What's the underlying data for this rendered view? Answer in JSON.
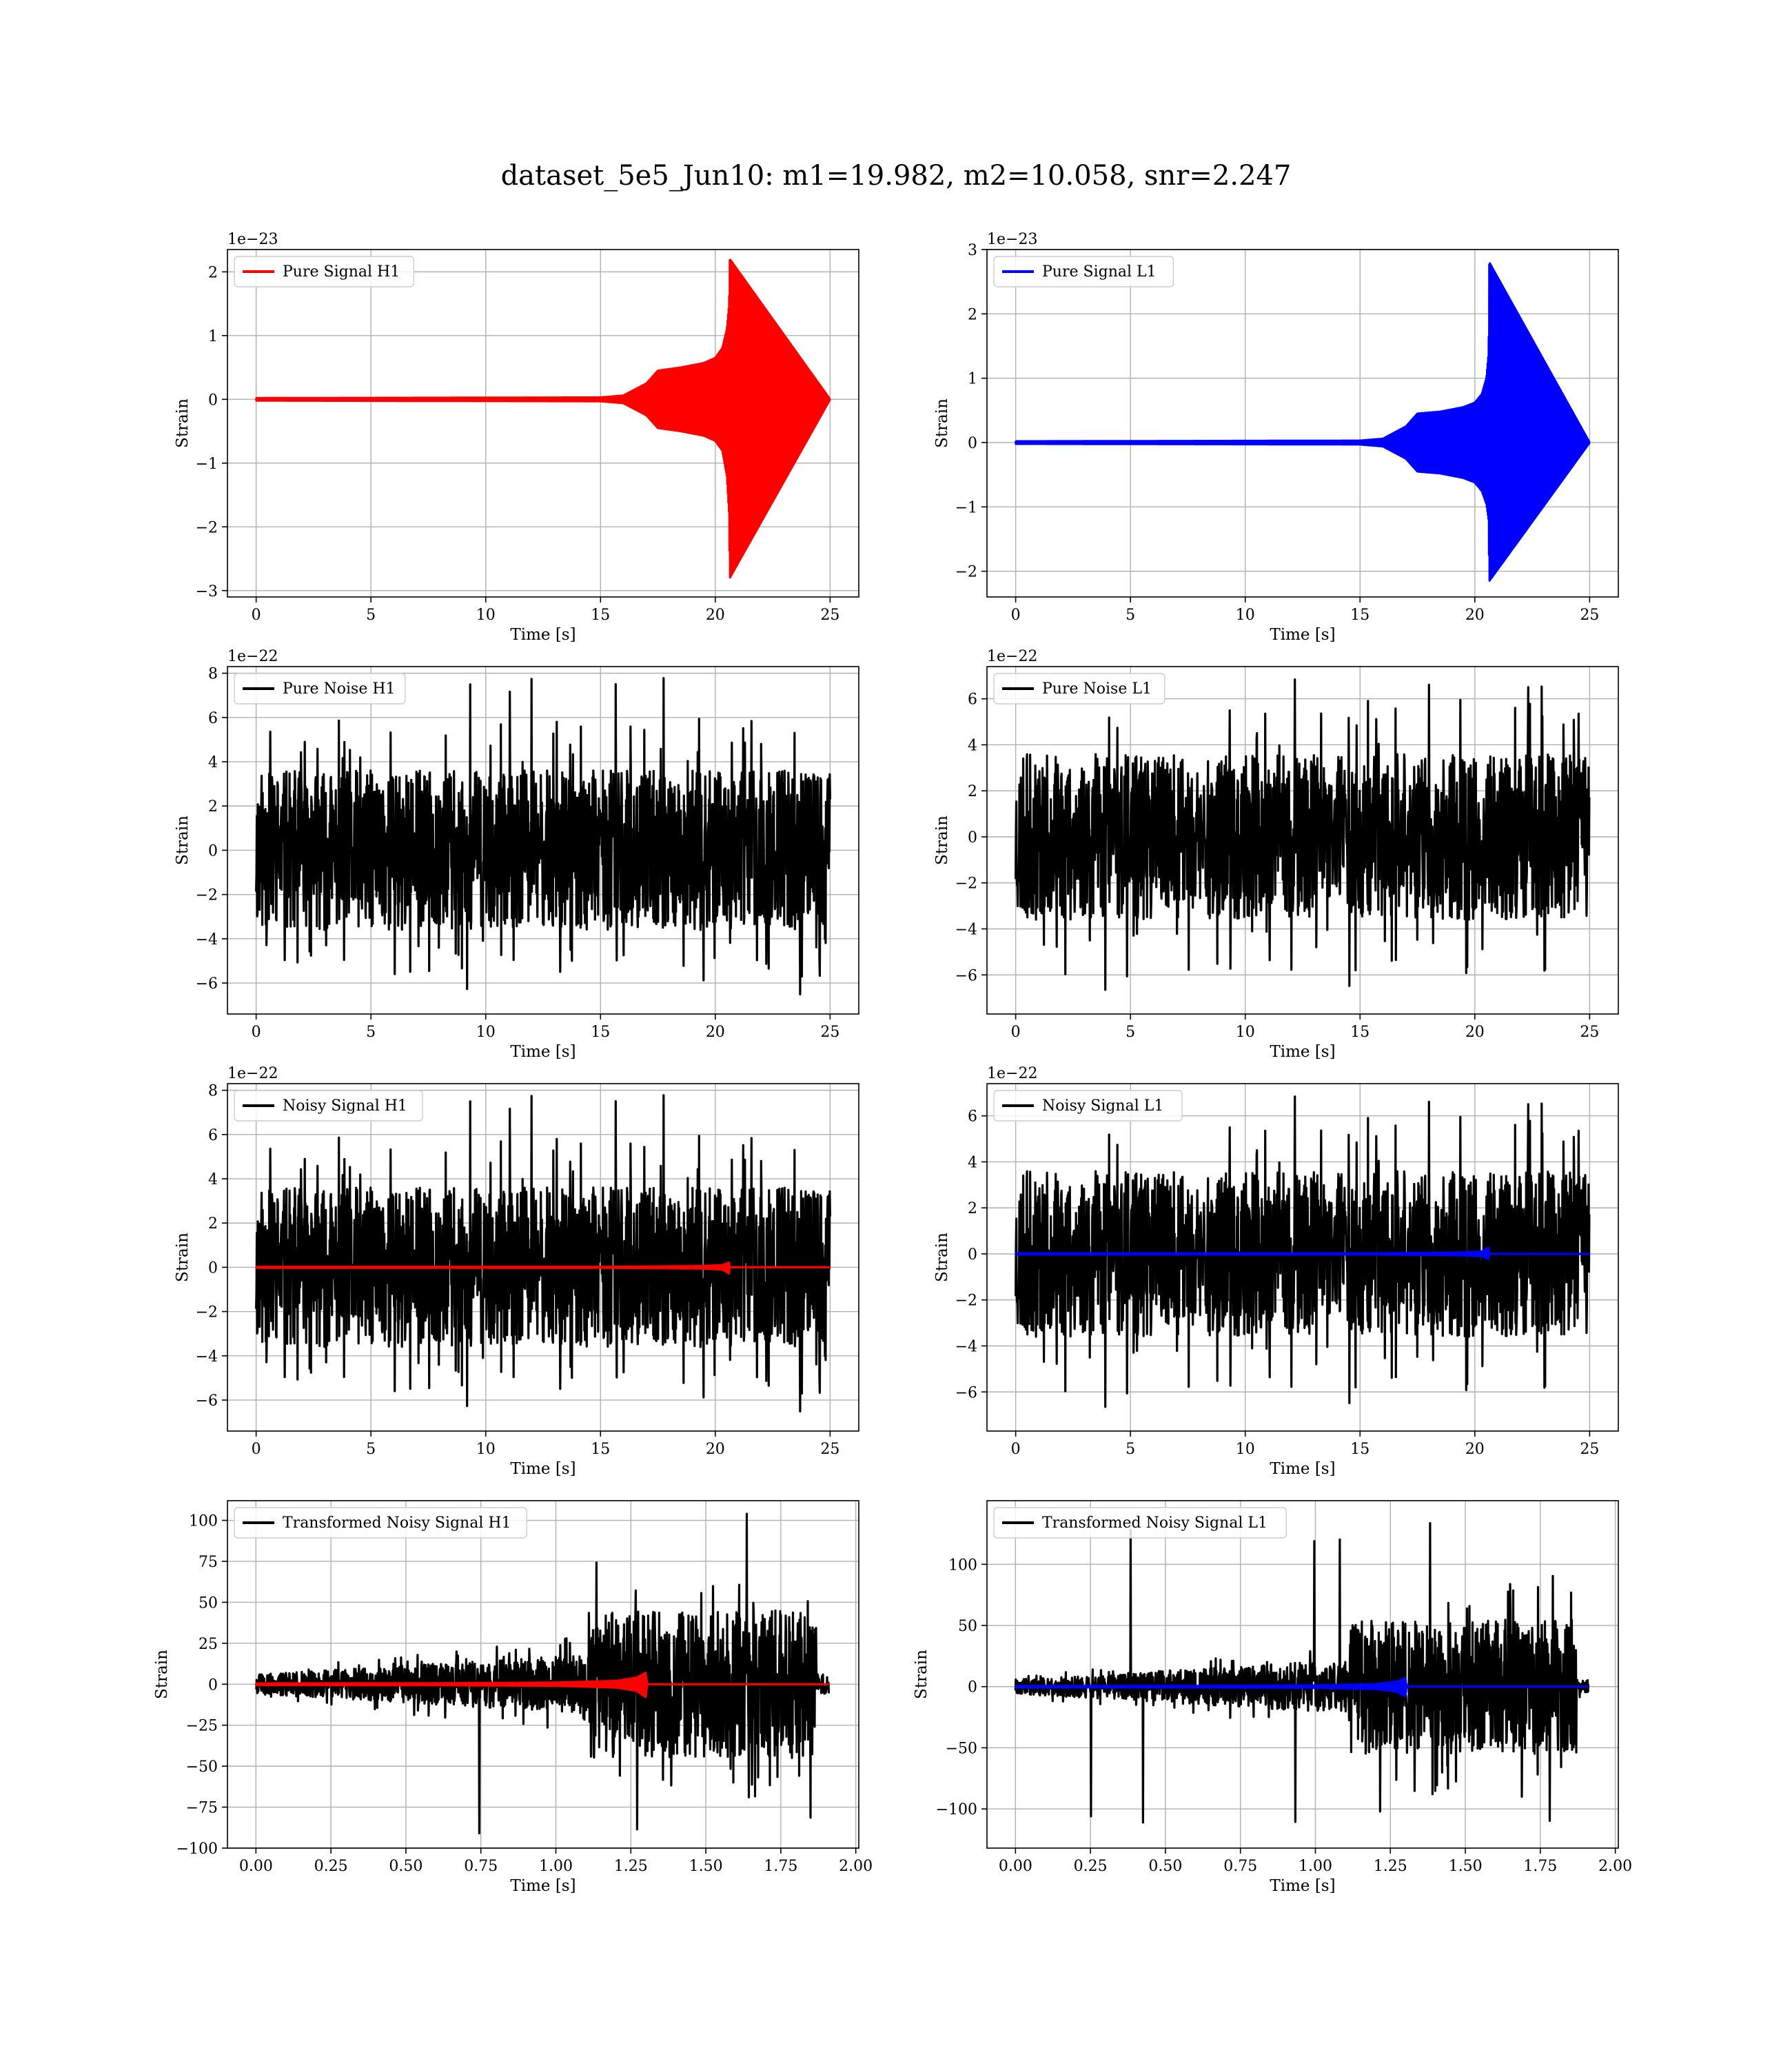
{
  "figure_title": "dataset_5e5_Jun10: m1=19.982, m2=10.058, snr=2.247",
  "colors": {
    "h1_signal": "#ff0000",
    "l1_signal": "#0000ff",
    "noise": "#000000",
    "grid": "#b0b0b0"
  },
  "chart_data": [
    {
      "id": "pure-signal-h1",
      "type": "line",
      "xlabel": "Time [s]",
      "ylabel": "Strain",
      "offset": "1e−23",
      "xlim": [
        -1.25,
        26.25
      ],
      "ylim": [
        -3.1,
        2.35
      ],
      "xticks": [
        0,
        5,
        10,
        15,
        20,
        25
      ],
      "xtick_labels": [
        "0",
        "5",
        "10",
        "15",
        "20",
        "25"
      ],
      "yticks": [
        -3,
        -2,
        -1,
        0,
        1,
        2
      ],
      "ytick_labels": [
        "−3",
        "−2",
        "−1",
        "0",
        "1",
        "2"
      ],
      "legend": {
        "position": "upper-left",
        "entries": [
          {
            "label": "Pure Signal H1",
            "color": "#ff0000"
          }
        ]
      },
      "series": [
        {
          "name": "Pure Signal H1",
          "kind": "chirp",
          "color": "#ff0000",
          "x": [
            0,
            15,
            16.0,
            17.0,
            17.5,
            18.5,
            19.5,
            20.0,
            20.3,
            20.5,
            20.6,
            20.63,
            25
          ],
          "y_env_max": [
            0.02,
            0.03,
            0.06,
            0.25,
            0.45,
            0.5,
            0.57,
            0.65,
            0.8,
            1.1,
            1.5,
            2.2,
            0.0
          ],
          "y_env_min": [
            -0.02,
            -0.03,
            -0.06,
            -0.25,
            -0.45,
            -0.5,
            -0.57,
            -0.65,
            -0.8,
            -1.2,
            -1.8,
            -2.8,
            0.0
          ]
        }
      ]
    },
    {
      "id": "pure-signal-l1",
      "type": "line",
      "xlabel": "Time [s]",
      "ylabel": "Strain",
      "offset": "1e−23",
      "xlim": [
        -1.25,
        26.25
      ],
      "ylim": [
        -2.4,
        3.0
      ],
      "xticks": [
        0,
        5,
        10,
        15,
        20,
        25
      ],
      "xtick_labels": [
        "0",
        "5",
        "10",
        "15",
        "20",
        "25"
      ],
      "yticks": [
        -2,
        -1,
        0,
        1,
        2,
        3
      ],
      "ytick_labels": [
        "−2",
        "−1",
        "0",
        "1",
        "2",
        "3"
      ],
      "legend": {
        "position": "upper-left",
        "entries": [
          {
            "label": "Pure Signal L1",
            "color": "#0000ff"
          }
        ]
      },
      "series": [
        {
          "name": "Pure Signal L1",
          "kind": "chirp",
          "color": "#0000ff",
          "x": [
            0,
            15,
            16.0,
            17.0,
            17.5,
            18.5,
            19.5,
            20.0,
            20.3,
            20.5,
            20.6,
            20.63,
            25
          ],
          "y_env_max": [
            0.02,
            0.03,
            0.06,
            0.25,
            0.45,
            0.48,
            0.55,
            0.62,
            0.75,
            1.0,
            1.4,
            2.8,
            0.0
          ],
          "y_env_min": [
            -0.02,
            -0.03,
            -0.06,
            -0.25,
            -0.45,
            -0.48,
            -0.55,
            -0.62,
            -0.75,
            -0.95,
            -1.2,
            -2.15,
            0.0
          ]
        }
      ]
    },
    {
      "id": "pure-noise-h1",
      "type": "line",
      "xlabel": "Time [s]",
      "ylabel": "Strain",
      "offset": "1e−22",
      "xlim": [
        -1.25,
        26.25
      ],
      "ylim": [
        -7.4,
        8.3
      ],
      "xticks": [
        0,
        5,
        10,
        15,
        20,
        25
      ],
      "xtick_labels": [
        "0",
        "5",
        "10",
        "15",
        "20",
        "25"
      ],
      "yticks": [
        -6,
        -4,
        -2,
        0,
        2,
        4,
        6,
        8
      ],
      "ytick_labels": [
        "−6",
        "−4",
        "−2",
        "0",
        "2",
        "4",
        "6",
        "8"
      ],
      "legend": {
        "position": "upper-left",
        "entries": [
          {
            "label": "Pure Noise H1",
            "color": "#000000"
          }
        ]
      },
      "series": [
        {
          "name": "Pure Noise H1",
          "kind": "noise",
          "color": "#000000",
          "x_range": [
            0,
            25
          ],
          "band": 3.6,
          "peak_max": 7.8,
          "peak_min": -6.7,
          "seed": 11
        }
      ]
    },
    {
      "id": "pure-noise-l1",
      "type": "line",
      "xlabel": "Time [s]",
      "ylabel": "Strain",
      "offset": "1e−22",
      "xlim": [
        -1.25,
        26.25
      ],
      "ylim": [
        -7.7,
        7.4
      ],
      "xticks": [
        0,
        5,
        10,
        15,
        20,
        25
      ],
      "xtick_labels": [
        "0",
        "5",
        "10",
        "15",
        "20",
        "25"
      ],
      "yticks": [
        -6,
        -4,
        -2,
        0,
        2,
        4,
        6
      ],
      "ytick_labels": [
        "−6",
        "−4",
        "−2",
        "0",
        "2",
        "4",
        "6"
      ],
      "legend": {
        "position": "upper-left",
        "entries": [
          {
            "label": "Pure Noise L1",
            "color": "#000000"
          }
        ]
      },
      "series": [
        {
          "name": "Pure Noise L1",
          "kind": "noise",
          "color": "#000000",
          "x_range": [
            0,
            25
          ],
          "band": 3.6,
          "peak_max": 7.0,
          "peak_min": -6.9,
          "seed": 23
        }
      ]
    },
    {
      "id": "noisy-signal-h1",
      "type": "line",
      "xlabel": "Time [s]",
      "ylabel": "Strain",
      "offset": "1e−22",
      "xlim": [
        -1.25,
        26.25
      ],
      "ylim": [
        -7.4,
        8.3
      ],
      "xticks": [
        0,
        5,
        10,
        15,
        20,
        25
      ],
      "xtick_labels": [
        "0",
        "5",
        "10",
        "15",
        "20",
        "25"
      ],
      "yticks": [
        -6,
        -4,
        -2,
        0,
        2,
        4,
        6,
        8
      ],
      "ytick_labels": [
        "−6",
        "−4",
        "−2",
        "0",
        "2",
        "4",
        "6",
        "8"
      ],
      "legend": {
        "position": "upper-left",
        "entries": [
          {
            "label": "Noisy Signal H1",
            "color": "#000000"
          }
        ]
      },
      "series": [
        {
          "name": "Noisy Signal H1",
          "kind": "noise",
          "color": "#000000",
          "x_range": [
            0,
            25
          ],
          "band": 3.6,
          "peak_max": 7.8,
          "peak_min": -6.7,
          "seed": 11
        },
        {
          "kind": "chirp",
          "color": "#ff0000",
          "x": [
            0,
            15,
            17.5,
            19.5,
            20.3,
            20.6,
            20.63,
            25
          ],
          "y_env_max": [
            0.02,
            0.02,
            0.04,
            0.06,
            0.1,
            0.22,
            0.0,
            0.0
          ],
          "y_env_min": [
            -0.02,
            -0.02,
            -0.04,
            -0.06,
            -0.1,
            -0.28,
            0.0,
            0.0
          ]
        }
      ]
    },
    {
      "id": "noisy-signal-l1",
      "type": "line",
      "xlabel": "Time [s]",
      "ylabel": "Strain",
      "offset": "1e−22",
      "xlim": [
        -1.25,
        26.25
      ],
      "ylim": [
        -7.7,
        7.4
      ],
      "xticks": [
        0,
        5,
        10,
        15,
        20,
        25
      ],
      "xtick_labels": [
        "0",
        "5",
        "10",
        "15",
        "20",
        "25"
      ],
      "yticks": [
        -6,
        -4,
        -2,
        0,
        2,
        4,
        6
      ],
      "ytick_labels": [
        "−6",
        "−4",
        "−2",
        "0",
        "2",
        "4",
        "6"
      ],
      "legend": {
        "position": "upper-left",
        "entries": [
          {
            "label": "Noisy Signal L1",
            "color": "#000000"
          }
        ]
      },
      "series": [
        {
          "name": "Noisy Signal L1",
          "kind": "noise",
          "color": "#000000",
          "x_range": [
            0,
            25
          ],
          "band": 3.6,
          "peak_max": 7.0,
          "peak_min": -6.9,
          "seed": 23
        },
        {
          "kind": "chirp",
          "color": "#0000ff",
          "x": [
            0,
            15,
            17.5,
            19.5,
            20.3,
            20.6,
            20.63,
            25
          ],
          "y_env_max": [
            0.02,
            0.02,
            0.04,
            0.06,
            0.1,
            0.28,
            0.0,
            0.0
          ],
          "y_env_min": [
            -0.02,
            -0.02,
            -0.04,
            -0.06,
            -0.1,
            -0.22,
            0.0,
            0.0
          ]
        }
      ]
    },
    {
      "id": "transformed-noisy-signal-h1",
      "type": "line",
      "xlabel": "Time [s]",
      "ylabel": "Strain",
      "offset": "",
      "xlim": [
        -0.095,
        2.01
      ],
      "ylim": [
        -100,
        112
      ],
      "xticks": [
        0,
        0.25,
        0.5,
        0.75,
        1.0,
        1.25,
        1.5,
        1.75,
        2.0
      ],
      "xtick_labels": [
        "0.00",
        "0.25",
        "0.50",
        "0.75",
        "1.00",
        "1.25",
        "1.50",
        "1.75",
        "2.00"
      ],
      "yticks": [
        -100,
        -75,
        -50,
        -25,
        0,
        25,
        50,
        75,
        100
      ],
      "ytick_labels": [
        "−100",
        "−75",
        "−50",
        "−25",
        "0",
        "25",
        "50",
        "75",
        "100"
      ],
      "legend": {
        "position": "upper-left",
        "entries": [
          {
            "label": "Transformed Noisy Signal H1",
            "color": "#000000"
          }
        ]
      },
      "series": [
        {
          "name": "Transformed Noisy Signal H1",
          "kind": "whitened",
          "color": "#000000",
          "x_range": [
            0,
            1.91
          ],
          "quiet_end": 1.11,
          "burst_end": 1.87,
          "quiet_band": 6,
          "quiet_ramp": 18,
          "burst_band": 45,
          "peak_max": 106,
          "peak_min": -92,
          "seed": 5
        },
        {
          "kind": "chirp",
          "color": "#ff0000",
          "x": [
            0,
            0.6,
            1.0,
            1.2,
            1.27,
            1.3,
            1.305,
            1.91
          ],
          "y_env_max": [
            0.5,
            0.6,
            1.0,
            2.0,
            4.0,
            7.0,
            0.0,
            0.0
          ],
          "y_env_min": [
            -0.5,
            -0.6,
            -1.0,
            -2.0,
            -4.0,
            -8.0,
            0.0,
            0.0
          ]
        }
      ]
    },
    {
      "id": "transformed-noisy-signal-l1",
      "type": "line",
      "xlabel": "Time [s]",
      "ylabel": "Strain",
      "offset": "",
      "xlim": [
        -0.095,
        2.01
      ],
      "ylim": [
        -132,
        152
      ],
      "xticks": [
        0,
        0.25,
        0.5,
        0.75,
        1.0,
        1.25,
        1.5,
        1.75,
        2.0
      ],
      "xtick_labels": [
        "0.00",
        "0.25",
        "0.50",
        "0.75",
        "1.00",
        "1.25",
        "1.50",
        "1.75",
        "2.00"
      ],
      "yticks": [
        -100,
        -50,
        0,
        50,
        100
      ],
      "ytick_labels": [
        "−100",
        "−50",
        "0",
        "50",
        "100"
      ],
      "legend": {
        "position": "upper-left",
        "entries": [
          {
            "label": "Transformed Noisy Signal L1",
            "color": "#000000"
          }
        ]
      },
      "series": [
        {
          "name": "Transformed Noisy Signal L1",
          "kind": "whitened",
          "color": "#000000",
          "x_range": [
            0,
            1.91
          ],
          "quiet_end": 1.11,
          "burst_end": 1.87,
          "quiet_band": 6,
          "quiet_ramp": 22,
          "burst_band": 55,
          "peak_max": 138,
          "peak_min": -120,
          "seed": 9
        },
        {
          "kind": "chirp",
          "color": "#0000ff",
          "x": [
            0,
            0.6,
            1.0,
            1.2,
            1.27,
            1.3,
            1.305,
            1.91
          ],
          "y_env_max": [
            0.5,
            0.6,
            1.0,
            2.0,
            4.0,
            7.0,
            0.0,
            0.0
          ],
          "y_env_min": [
            -0.5,
            -0.6,
            -1.0,
            -2.0,
            -4.0,
            -8.0,
            0.0,
            0.0
          ]
        }
      ]
    }
  ]
}
